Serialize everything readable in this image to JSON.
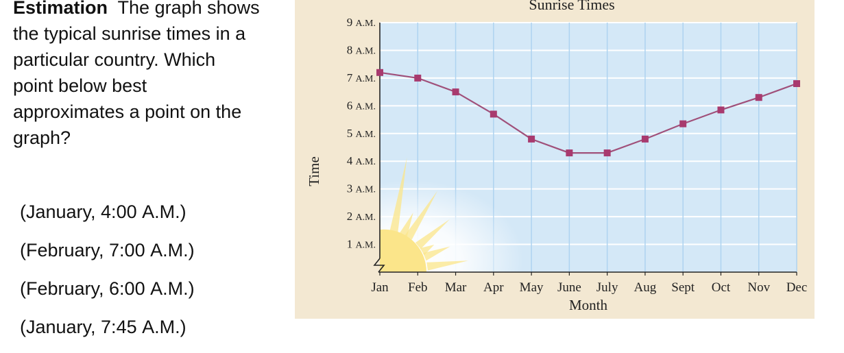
{
  "question": {
    "heading": "Estimation",
    "text": "The graph shows the typical sunrise times in a particular country. Which point below best approximates a point on the graph?"
  },
  "choices": [
    {
      "prefix": "(January, 4:00 ",
      "suffix": "A.M.)"
    },
    {
      "prefix": "(February, 7:00 ",
      "suffix": "A.M.)"
    },
    {
      "prefix": "(February, 6:00 ",
      "suffix": "A.M.)"
    },
    {
      "prefix": "(January, 7:45 ",
      "suffix": "A.M.)"
    }
  ],
  "colors": {
    "panel_bg": "#f3e8d2",
    "plot_bg": "#d4e8f7",
    "grid": "#ffffff",
    "line": "#a0507a",
    "marker": "#a83a6e",
    "sun": "#fbe58a"
  },
  "chart_data": {
    "type": "line",
    "title": "Sunrise Times",
    "xlabel": "Month",
    "ylabel": "Time",
    "categories": [
      "Jan",
      "Feb",
      "Mar",
      "Apr",
      "May",
      "June",
      "July",
      "Aug",
      "Sept",
      "Oct",
      "Nov",
      "Dec"
    ],
    "y_ticks": [
      {
        "value": 9,
        "label": "9 A.M."
      },
      {
        "value": 8,
        "label": "8 A.M."
      },
      {
        "value": 7,
        "label": "7 A.M."
      },
      {
        "value": 6,
        "label": "6 A.M."
      },
      {
        "value": 5,
        "label": "5 A.M."
      },
      {
        "value": 4,
        "label": "4 A.M."
      },
      {
        "value": 3,
        "label": "3 A.M."
      },
      {
        "value": 2,
        "label": "2 A.M."
      },
      {
        "value": 1,
        "label": "1 A.M."
      }
    ],
    "ylim": [
      0,
      9
    ],
    "grid": true,
    "series": [
      {
        "values": [
          7.2,
          7.0,
          6.5,
          5.7,
          4.8,
          4.3,
          4.3,
          4.8,
          5.35,
          5.85,
          6.3,
          6.8
        ]
      }
    ]
  }
}
